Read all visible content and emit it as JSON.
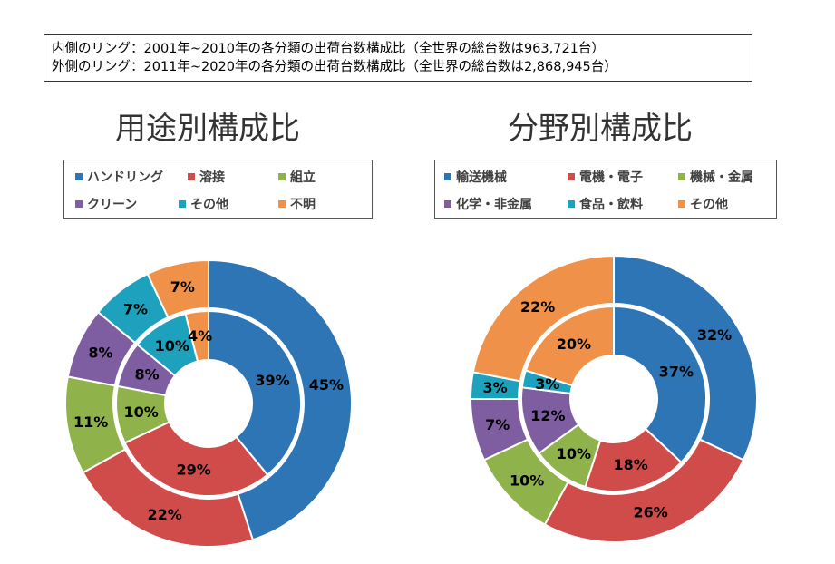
{
  "note": {
    "inner_line": "内側のリング：2001年~2010年の各分類の出荷台数構成比（全世界の総台数は963,721台）",
    "outer_line": "外側のリング：2011年~2020年の各分類の出荷台数構成比（全世界の総台数は2,868,945台）"
  },
  "chart_data": [
    {
      "type": "donut",
      "title": "用途別構成比",
      "categories": [
        "ハンドリング",
        "溶接",
        "組立",
        "クリーン",
        "その他",
        "不明"
      ],
      "colors": [
        "#2e75b6",
        "#d04c4a",
        "#8fb24b",
        "#7e5ea0",
        "#1ea1bc",
        "#f0914a"
      ],
      "series": [
        {
          "name": "2001年~2010年",
          "ring": "inner",
          "values": [
            39,
            29,
            10,
            8,
            10,
            4
          ],
          "labels": [
            "39%",
            "29%",
            "10%",
            "8%",
            "10%",
            "4%"
          ]
        },
        {
          "name": "2011年~2020年",
          "ring": "outer",
          "values": [
            45,
            22,
            11,
            8,
            7,
            7
          ],
          "labels": [
            "45%",
            "22%",
            "11%",
            "8%",
            "7%",
            "7%"
          ]
        }
      ]
    },
    {
      "type": "donut",
      "title": "分野別構成比",
      "categories": [
        "輸送機械",
        "電機・電子",
        "機械・金属",
        "化学・非金属",
        "食品・飲料",
        "その他"
      ],
      "colors": [
        "#2e75b6",
        "#d04c4a",
        "#8fb24b",
        "#7e5ea0",
        "#1ea1bc",
        "#f0914a"
      ],
      "series": [
        {
          "name": "2001年~2010年",
          "ring": "inner",
          "values": [
            37,
            18,
            10,
            12,
            3,
            20
          ],
          "labels": [
            "37%",
            "18%",
            "10%",
            "12%",
            "3%",
            "20%"
          ]
        },
        {
          "name": "2011年~2020年",
          "ring": "outer",
          "values": [
            32,
            26,
            10,
            7,
            3,
            22
          ],
          "labels": [
            "32%",
            "26%",
            "10%",
            "7%",
            "3%",
            "22%"
          ]
        }
      ]
    }
  ]
}
